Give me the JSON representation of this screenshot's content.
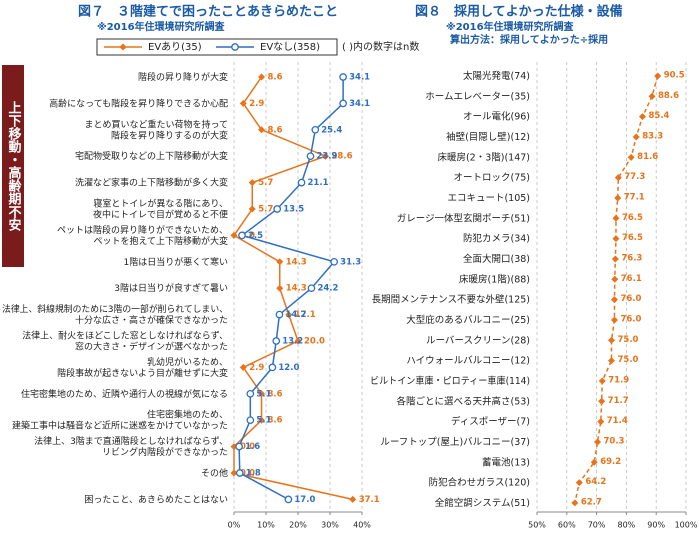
{
  "chart_data": [
    {
      "type": "line",
      "orientation": "horizontal",
      "title": "図７　３階建てで困ったことあきらめたこと",
      "subtitle": "※2016年住環境研究所調査",
      "annotation": "( )内の数字はn数",
      "group_label": "上下移動・高齢期不安",
      "categories": [
        "階段の昇り降りが大変",
        "高齢になっても階段を昇り降りできるか心配",
        "まとめ買いなど重たい荷物を持って\n階段を昇り降りするのが大変",
        "宅配物受取りなどの上下階移動が大変",
        "洗濯など家事の上下階移動が多く大変",
        "寝室とトイレが異なる階にあり、\n夜中にトイレで目が覚めると不便",
        "ペットは階段の昇り降りができないため、\nペットを抱えて上下階移動が大変",
        "1階は日当りが悪くて寒い",
        "3階は日当りが良すぎて暑い",
        "法律上、斜線規制のために3階の一部が削られてしまい、\n十分な広さ・高さが確保できなかった",
        "法律上、耐火をほどこした窓としなければならず、\n窓の大きさ・デザインが選べなかった",
        "乳幼児がいるため、\n階段事故が起きないよう目が離せずに大変",
        "住宅密集地のため、近隣や通行人の視線が気になる",
        "住宅密集地のため、\n建築工事中は騒音など近所に迷惑をかけていなかった",
        "法律上、3階まで直通階段としなければならず、\nリビング内階段ができなかった",
        "その他",
        "困ったこと、あきらめたことはない"
      ],
      "series": [
        {
          "name": "EVあり(35)",
          "color": "#e8731a",
          "marker": "diamond",
          "values": [
            8.6,
            2.9,
            8.6,
            28.6,
            5.7,
            5.7,
            0.0,
            14.3,
            14.3,
            17.1,
            20.0,
            2.9,
            8.6,
            8.6,
            0.0,
            0.0,
            37.1
          ],
          "value_labels": [
            "8.6",
            "2.9",
            "8.6",
            "28.6",
            "5.7",
            "5.7",
            "0.0",
            "14.3",
            "14.3",
            "17.1",
            "20.0",
            "2.9",
            "8.6",
            "8.6",
            "0.0",
            "0.0",
            "37.1"
          ]
        },
        {
          "name": "EVなし(358)",
          "color": "#2e6fc4",
          "marker": "circle",
          "values": [
            34.1,
            34.1,
            25.4,
            23.9,
            21.1,
            13.5,
            2.5,
            31.3,
            24.2,
            14.2,
            13.2,
            12.0,
            5.1,
            5.1,
            1.6,
            1.8,
            17.0
          ],
          "value_labels": [
            "34.1",
            "34.1",
            "25.4",
            "23.9",
            "21.1",
            "13.5",
            "2.5",
            "31.3",
            "24.2",
            "14.2",
            "13.2",
            "12.0",
            "5.1",
            "5.1",
            "1.6",
            "1.8",
            "17.0"
          ]
        }
      ],
      "xlim": [
        0,
        40
      ],
      "xticks": [
        {
          "value": 0,
          "label": "0%"
        },
        {
          "value": 10,
          "label": "10%"
        },
        {
          "value": 20,
          "label": "20%"
        },
        {
          "value": 30,
          "label": "30%"
        },
        {
          "value": 40,
          "label": "40%"
        }
      ],
      "grid": true
    },
    {
      "type": "line",
      "orientation": "horizontal",
      "title": "図８　採用してよかった仕様・設備",
      "subtitle": "※2016年住環境研究所調査",
      "note": "算出方法：採用してよかった÷採用",
      "categories": [
        "太陽光発電(74)",
        "ホームエレベーター(35)",
        "オール電化(96)",
        "袖壁(目隠し壁)(12)",
        "床暖房(2・3階)(147)",
        "オートロック(75)",
        "エコキュート(105)",
        "ガレージ一体型玄関ポーチ(51)",
        "防犯カメラ(34)",
        "全面大開口(38)",
        "床暖房(1階)(88)",
        "長期間メンテナンス不要な外壁(125)",
        "大型庇のあるバルコニー(25)",
        "ルーバースクリーン(28)",
        "ハイウォールバルコニー(12)",
        "ビルトイン車庫・ピロティー車庫(114)",
        "各階ごとに選べる天井高さ(53)",
        "ディスポーザー(7)",
        "ルーフトップ(屋上)バルコニー(37)",
        "蓄電池(13)",
        "防犯合わせガラス(120)",
        "全館空調システム(51)"
      ],
      "series": [
        {
          "color": "#e8731a",
          "marker": "diamond",
          "values": [
            90.5,
            88.6,
            85.4,
            83.3,
            81.6,
            77.3,
            77.1,
            76.5,
            76.5,
            76.3,
            76.1,
            76.0,
            76.0,
            75.0,
            75.0,
            71.9,
            71.7,
            71.4,
            70.3,
            69.2,
            64.2,
            62.7
          ],
          "value_labels": [
            "90.5",
            "88.6",
            "85.4",
            "83.3",
            "81.6",
            "77.3",
            "77.1",
            "76.5",
            "76.5",
            "76.3",
            "76.1",
            "76.0",
            "76.0",
            "75.0",
            "75.0",
            "71.9",
            "71.7",
            "71.4",
            "70.3",
            "69.2",
            "64.2",
            "62.7"
          ]
        }
      ],
      "xlim": [
        50,
        100
      ],
      "xticks": [
        {
          "value": 50,
          "label": "50%"
        },
        {
          "value": 60,
          "label": "60%"
        },
        {
          "value": 70,
          "label": "70%"
        },
        {
          "value": 80,
          "label": "80%"
        },
        {
          "value": 90,
          "label": "90%"
        },
        {
          "value": 100,
          "label": "100%"
        }
      ],
      "grid": true
    }
  ]
}
